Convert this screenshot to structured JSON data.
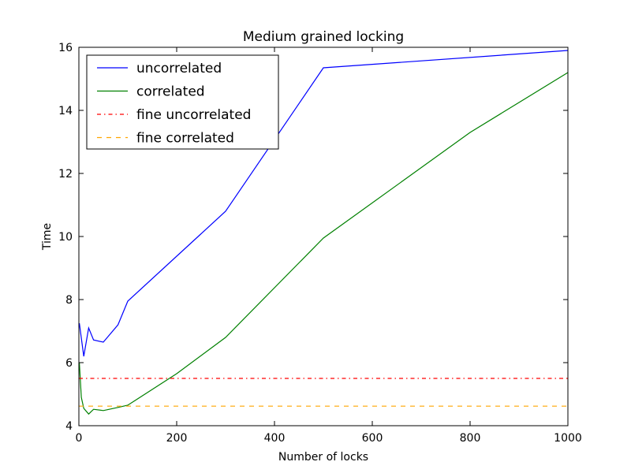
{
  "chart_data": {
    "type": "line",
    "title": "Medium grained locking",
    "xlabel": "Number of locks",
    "ylabel": "Time",
    "xlim": [
      0,
      1000
    ],
    "ylim": [
      4,
      16
    ],
    "xticks": [
      0,
      200,
      400,
      600,
      800,
      1000
    ],
    "yticks": [
      4,
      6,
      8,
      10,
      12,
      14,
      16
    ],
    "xtick_labels": [
      "0",
      "200",
      "400",
      "600",
      "800",
      "1000"
    ],
    "ytick_labels": [
      "4",
      "6",
      "8",
      "10",
      "12",
      "14",
      "16"
    ],
    "grid": false,
    "legend_position": "top-left",
    "series": [
      {
        "name": "uncorrelated",
        "color": "#0000ff",
        "style": "solid",
        "x": [
          1,
          10,
          20,
          30,
          50,
          80,
          100,
          300,
          500,
          1000
        ],
        "y": [
          7.25,
          6.2,
          7.1,
          6.72,
          6.65,
          7.2,
          7.95,
          10.8,
          15.35,
          15.9
        ]
      },
      {
        "name": "correlated",
        "color": "#008000",
        "style": "solid",
        "x": [
          1,
          5,
          10,
          20,
          30,
          50,
          80,
          100,
          200,
          300,
          500,
          800,
          1000
        ],
        "y": [
          6.0,
          4.9,
          4.55,
          4.37,
          4.52,
          4.48,
          4.58,
          4.65,
          5.65,
          6.8,
          9.95,
          13.3,
          15.2
        ]
      },
      {
        "name": "fine uncorrelated",
        "color": "#ff0000",
        "style": "dashdot",
        "x": [
          0,
          1000
        ],
        "y": [
          5.5,
          5.5
        ]
      },
      {
        "name": "fine correlated",
        "color": "#ffa500",
        "style": "dashed",
        "x": [
          0,
          1000
        ],
        "y": [
          4.62,
          4.62
        ]
      }
    ]
  }
}
